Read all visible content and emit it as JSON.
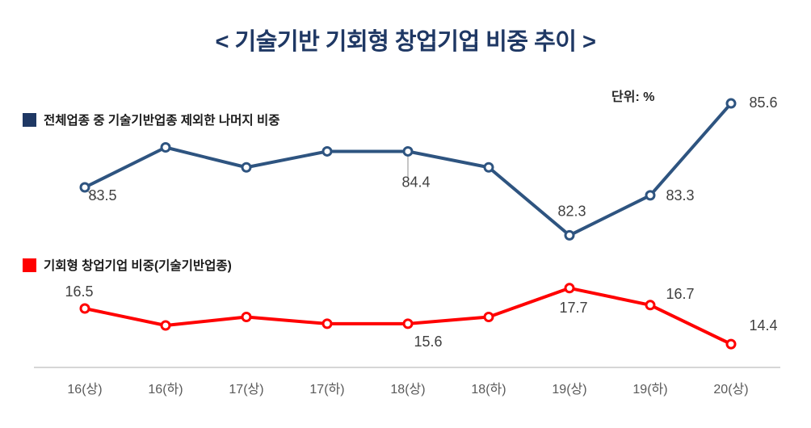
{
  "title": "< 기술기반 기회형 창업기업 비중 추이 >",
  "unit_label": "단위: %",
  "chart_data": {
    "type": "line",
    "title": "< 기술기반 기회형 창업기업 비중 추이 >",
    "unit": "%",
    "categories": [
      "16(상)",
      "16(하)",
      "17(상)",
      "17(하)",
      "18(상)",
      "18(하)",
      "19(상)",
      "19(하)",
      "20(상)"
    ],
    "series": [
      {
        "name": "전체업종 중 기술기반업종 제외한 나머지 비중",
        "color": "#1f3864",
        "line_color": "#2e5480",
        "values": [
          83.5,
          84.5,
          84.0,
          84.4,
          84.4,
          84.0,
          82.3,
          83.3,
          85.6
        ],
        "point_labels": {
          "0": "83.5",
          "4": "84.4",
          "6": "82.3",
          "7": "83.3",
          "8": "85.6"
        }
      },
      {
        "name": "기회형 창업기업 비중(기술기반업종)",
        "color": "#ff0000",
        "line_color": "#ff0000",
        "values": [
          16.5,
          15.5,
          16.0,
          15.6,
          15.6,
          16.0,
          17.7,
          16.7,
          14.4
        ],
        "point_labels": {
          "0": "16.5",
          "4": "15.6",
          "6": "17.7",
          "7": "16.7",
          "8": "14.4"
        }
      }
    ],
    "grid": false,
    "legend_position": "inline-left",
    "axis_label_color": "#595959",
    "value_label_color": "#404040"
  }
}
